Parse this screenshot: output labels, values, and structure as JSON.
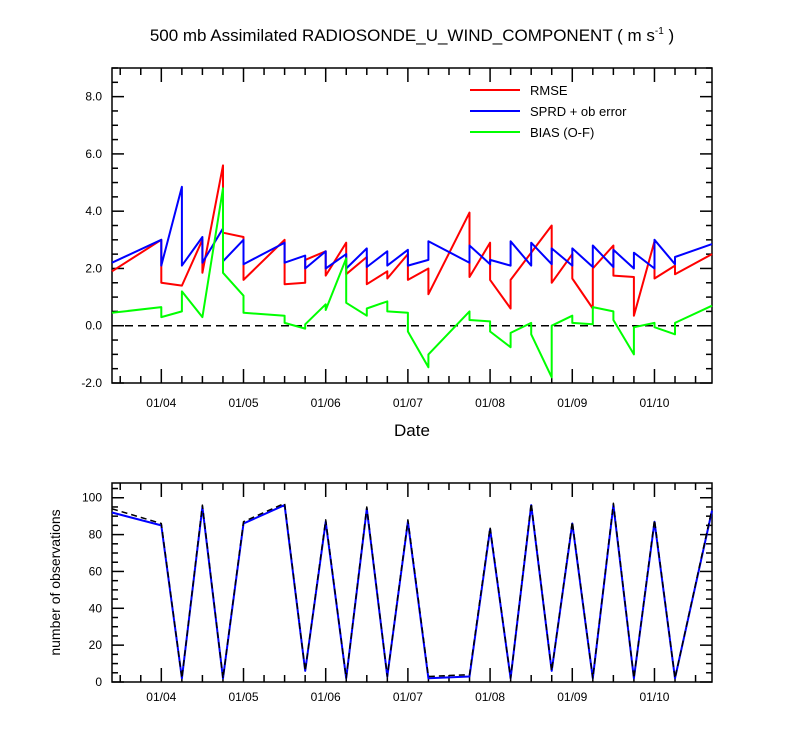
{
  "figure": {
    "title_prefix": "500 mb Assimilated RADIOSONDE_U_WIND_COMPONENT ( m s",
    "title_superscript": "-1",
    "title_suffix": " )"
  },
  "chart_data": [
    {
      "type": "line",
      "name": "top-panel",
      "xlabel": "Date",
      "ylabel": "",
      "x_range_days": [
        0.4,
        7.7
      ],
      "xticks": [
        {
          "x": 1,
          "label": "01/04"
        },
        {
          "x": 2,
          "label": "01/05"
        },
        {
          "x": 3,
          "label": "01/06"
        },
        {
          "x": 4,
          "label": "01/07"
        },
        {
          "x": 5,
          "label": "01/08"
        },
        {
          "x": 6,
          "label": "01/09"
        },
        {
          "x": 7,
          "label": "01/10"
        }
      ],
      "ylim": [
        -2.0,
        9.0
      ],
      "yticks": [
        "-2.0",
        "0.0",
        "2.0",
        "4.0",
        "6.0",
        "8.0"
      ],
      "ytick_values": [
        -2,
        0,
        2,
        4,
        6,
        8
      ],
      "zero_line": {
        "y": 0.0,
        "style": "dashed"
      },
      "legend_position": "top-right",
      "series": [
        {
          "name": "RMSE",
          "color": "#ff0000",
          "x": [
            0.4,
            1.0,
            1.0,
            1.25,
            1.5,
            1.5,
            1.75,
            1.75,
            2.0,
            2.0,
            2.5,
            2.5,
            2.75,
            2.75,
            3.0,
            3.0,
            3.25,
            3.25,
            3.5,
            3.5,
            3.75,
            3.75,
            4.0,
            4.0,
            4.25,
            4.25,
            4.75,
            4.75,
            5.0,
            5.0,
            5.25,
            5.25,
            5.75,
            5.75,
            6.0,
            6.0,
            6.25,
            6.25,
            6.5,
            6.5,
            6.75,
            6.75,
            7.0,
            7.0,
            7.25,
            7.25,
            7.7
          ],
          "y": [
            1.9,
            3.0,
            1.5,
            1.4,
            3.0,
            1.85,
            5.6,
            3.25,
            3.1,
            1.6,
            3.0,
            1.45,
            1.5,
            2.3,
            2.6,
            1.75,
            2.9,
            1.8,
            2.4,
            1.45,
            1.9,
            1.65,
            2.5,
            1.6,
            2.0,
            1.1,
            3.95,
            1.7,
            2.9,
            1.6,
            0.6,
            1.6,
            3.5,
            1.5,
            2.5,
            1.65,
            0.6,
            2.0,
            2.8,
            1.75,
            1.7,
            0.35,
            2.95,
            1.65,
            2.1,
            1.8,
            2.5
          ]
        },
        {
          "name": "SPRD + ob error",
          "color": "#0000ff",
          "x": [
            0.4,
            1.0,
            1.0,
            1.25,
            1.25,
            1.5,
            1.5,
            1.75,
            1.75,
            2.0,
            2.0,
            2.5,
            2.5,
            2.75,
            2.75,
            3.0,
            3.0,
            3.25,
            3.25,
            3.5,
            3.5,
            3.75,
            3.75,
            4.0,
            4.0,
            4.25,
            4.25,
            4.75,
            4.75,
            5.0,
            5.0,
            5.25,
            5.25,
            5.5,
            5.5,
            5.75,
            5.75,
            6.0,
            6.0,
            6.25,
            6.25,
            6.5,
            6.5,
            6.75,
            6.75,
            7.0,
            7.0,
            7.25,
            7.25,
            7.7
          ],
          "y": [
            2.2,
            3.0,
            2.1,
            4.85,
            2.1,
            3.1,
            2.2,
            3.4,
            2.25,
            3.0,
            2.15,
            2.9,
            2.2,
            2.45,
            2.0,
            2.6,
            2.0,
            2.5,
            2.0,
            2.7,
            2.05,
            2.6,
            2.1,
            2.65,
            2.1,
            2.3,
            2.95,
            2.2,
            2.8,
            2.15,
            2.3,
            2.1,
            2.95,
            2.1,
            2.9,
            2.15,
            2.7,
            2.1,
            2.7,
            2.05,
            2.8,
            2.05,
            2.65,
            2.0,
            2.55,
            2.0,
            3.0,
            2.15,
            2.4,
            2.85
          ]
        },
        {
          "name": "BIAS (O-F)",
          "color": "#00ff00",
          "x": [
            0.4,
            1.0,
            1.0,
            1.25,
            1.25,
            1.5,
            1.75,
            1.75,
            2.0,
            2.0,
            2.5,
            2.5,
            2.75,
            2.75,
            3.0,
            3.0,
            3.25,
            3.25,
            3.5,
            3.5,
            3.75,
            3.75,
            4.0,
            4.0,
            4.25,
            4.25,
            4.75,
            4.75,
            5.0,
            5.0,
            5.25,
            5.25,
            5.5,
            5.5,
            5.75,
            5.75,
            6.0,
            6.0,
            6.25,
            6.25,
            6.5,
            6.5,
            6.75,
            6.75,
            7.0,
            7.0,
            7.25,
            7.25,
            7.7
          ],
          "y": [
            0.45,
            0.65,
            0.3,
            0.5,
            1.2,
            0.3,
            4.8,
            1.85,
            1.05,
            0.45,
            0.35,
            0.1,
            -0.1,
            0.05,
            0.75,
            0.55,
            2.35,
            0.8,
            0.35,
            0.6,
            0.85,
            0.5,
            0.45,
            -0.2,
            -1.45,
            -1.0,
            0.5,
            0.2,
            0.15,
            -0.2,
            -0.75,
            -0.25,
            0.1,
            -0.3,
            -1.8,
            0.0,
            0.35,
            0.1,
            0.05,
            0.65,
            0.5,
            0.2,
            -1.0,
            -0.05,
            0.1,
            -0.05,
            -0.3,
            0.1,
            0.7
          ]
        }
      ]
    },
    {
      "type": "line",
      "name": "bottom-panel",
      "xlabel": "",
      "ylabel": "number of observations",
      "x_range_days": [
        0.4,
        7.7
      ],
      "xticks": [
        {
          "x": 1,
          "label": "01/04"
        },
        {
          "x": 2,
          "label": "01/05"
        },
        {
          "x": 3,
          "label": "01/06"
        },
        {
          "x": 4,
          "label": "01/07"
        },
        {
          "x": 5,
          "label": "01/08"
        },
        {
          "x": 6,
          "label": "01/09"
        },
        {
          "x": 7,
          "label": "01/10"
        }
      ],
      "ylim": [
        0,
        108
      ],
      "yticks": [
        "0",
        "20",
        "40",
        "60",
        "80",
        "100"
      ],
      "ytick_values": [
        0,
        20,
        40,
        60,
        80,
        100
      ],
      "series": [
        {
          "name": "observations-solid",
          "color": "#0000ff",
          "style": "solid",
          "x": [
            0.4,
            1.0,
            1.25,
            1.5,
            1.75,
            2.0,
            2.5,
            2.75,
            3.0,
            3.25,
            3.5,
            3.75,
            4.0,
            4.25,
            4.75,
            5.0,
            5.25,
            5.5,
            5.75,
            6.0,
            6.25,
            6.5,
            6.75,
            7.0,
            7.25,
            7.7
          ],
          "values": [
            92,
            85,
            2,
            95,
            2,
            86,
            96,
            6,
            87,
            2,
            94,
            3,
            87,
            2,
            3,
            83,
            2,
            96,
            6,
            86,
            2,
            96,
            2,
            87,
            2,
            93
          ]
        },
        {
          "name": "observations-dashed",
          "color": "#000000",
          "style": "dashed",
          "x": [
            0.4,
            1.0,
            1.25,
            1.5,
            1.75,
            2.0,
            2.5,
            2.75,
            3.0,
            3.25,
            3.5,
            3.75,
            4.0,
            4.25,
            4.75,
            5.0,
            5.25,
            5.5,
            5.75,
            6.0,
            6.25,
            6.5,
            6.75,
            7.0,
            7.25,
            7.7
          ],
          "values": [
            94,
            86,
            2,
            96,
            2,
            87,
            97,
            6,
            88,
            2,
            95,
            3,
            88,
            3,
            4,
            84,
            2,
            97,
            6,
            87,
            2,
            97,
            2,
            88,
            2,
            94
          ]
        }
      ]
    }
  ]
}
